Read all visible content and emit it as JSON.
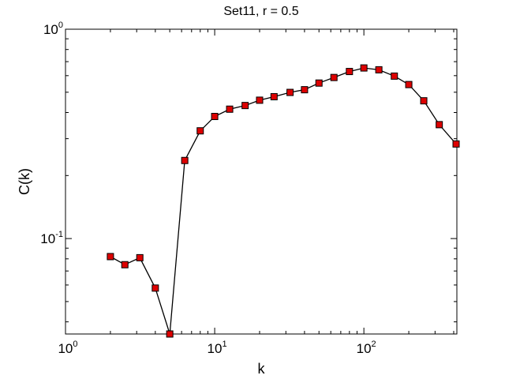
{
  "chart_data": {
    "type": "line",
    "title": "Set11, r = 0.5",
    "xlabel": "k",
    "ylabel": "C(k)",
    "xscale": "log",
    "yscale": "log",
    "xlim": [
      1,
      420
    ],
    "ylim": [
      0.035,
      1
    ],
    "grid": false,
    "legend": "none",
    "x_ticks": [
      {
        "value": 1,
        "base": "10",
        "exp": "0"
      },
      {
        "value": 10,
        "base": "10",
        "exp": "1"
      },
      {
        "value": 100,
        "base": "10",
        "exp": "2"
      }
    ],
    "y_ticks": [
      {
        "value": 0.1,
        "base": "10",
        "exp": "-1"
      },
      {
        "value": 1,
        "base": "10",
        "exp": "0"
      }
    ],
    "marker_color": "#dd0000",
    "line_color": "#000000",
    "series": [
      {
        "x": [
          2,
          2.5,
          3.15,
          4,
          5,
          6.3,
          8,
          10,
          12.6,
          16,
          20,
          25,
          32,
          40,
          50,
          63,
          80,
          100,
          126,
          160,
          200,
          252,
          320,
          415
        ],
        "y": [
          0.082,
          0.075,
          0.081,
          0.058,
          0.035,
          0.236,
          0.327,
          0.383,
          0.415,
          0.432,
          0.458,
          0.476,
          0.499,
          0.514,
          0.553,
          0.588,
          0.628,
          0.653,
          0.64,
          0.597,
          0.544,
          0.455,
          0.35,
          0.283
        ]
      }
    ]
  }
}
